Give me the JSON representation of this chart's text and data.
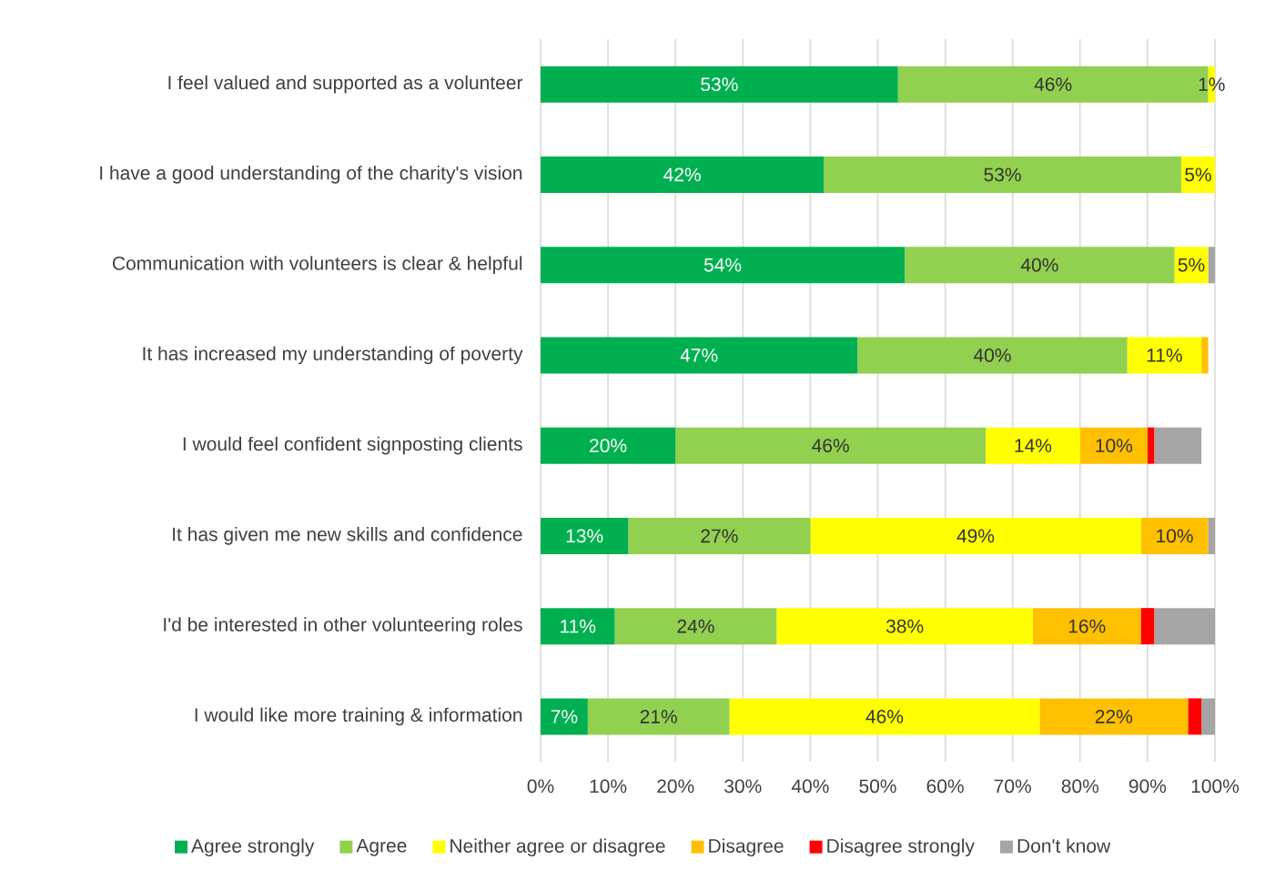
{
  "chart_data": {
    "type": "bar",
    "orientation": "horizontal",
    "stacked": true,
    "legend": "bottom",
    "grid": "x",
    "categories": [
      "I feel valued and supported as a volunteer",
      "I have a good understanding of the charity's vision",
      "Communication with volunteers is clear & helpful",
      "It has increased my understanding of poverty",
      "I would feel confident signposting clients",
      "It has given me new skills and confidence",
      "I'd be interested in other volunteering roles",
      "I would like more training & information"
    ],
    "xlim": [
      0,
      100
    ],
    "xticks": [
      {
        "value": 0,
        "label": "0%"
      },
      {
        "value": 10,
        "label": "10%"
      },
      {
        "value": 20,
        "label": "20%"
      },
      {
        "value": 30,
        "label": "30%"
      },
      {
        "value": 40,
        "label": "40%"
      },
      {
        "value": 50,
        "label": "50%"
      },
      {
        "value": 60,
        "label": "60%"
      },
      {
        "value": 70,
        "label": "70%"
      },
      {
        "value": 80,
        "label": "80%"
      },
      {
        "value": 90,
        "label": "90%"
      },
      {
        "value": 100,
        "label": "100%"
      }
    ],
    "series": [
      {
        "name": "Agree strongly",
        "color": "#00b050",
        "values": [
          53,
          42,
          54,
          47,
          20,
          13,
          11,
          7
        ],
        "value_labels": [
          "53%",
          "42%",
          "54%",
          "47%",
          "20%",
          "13%",
          "11%",
          "7%"
        ]
      },
      {
        "name": "Agree",
        "color": "#92d050",
        "values": [
          46,
          53,
          40,
          40,
          46,
          27,
          24,
          21
        ],
        "value_labels": [
          "46%",
          "53%",
          "40%",
          "40%",
          "46%",
          "27%",
          "24%",
          "21%"
        ]
      },
      {
        "name": "Neither agree or disagree",
        "color": "#ffff00",
        "values": [
          1,
          5,
          5,
          11,
          14,
          49,
          38,
          46
        ],
        "value_labels": [
          "1%",
          "5%",
          "5%",
          "11%",
          "14%",
          "49%",
          "38%",
          "46%"
        ]
      },
      {
        "name": "Disagree",
        "color": "#ffc000",
        "values": [
          0,
          0,
          0,
          1,
          10,
          10,
          16,
          22
        ],
        "value_labels": [
          null,
          null,
          null,
          null,
          "10%",
          "10%",
          "16%",
          "22%"
        ]
      },
      {
        "name": "Disagree strongly",
        "color": "#ff0000",
        "values": [
          0,
          0,
          0,
          0,
          1,
          0,
          2,
          2
        ]
      },
      {
        "name": "Don't know",
        "color": "#a5a5a5",
        "values": [
          0,
          0,
          1,
          0,
          7,
          1,
          9,
          2
        ]
      }
    ]
  }
}
